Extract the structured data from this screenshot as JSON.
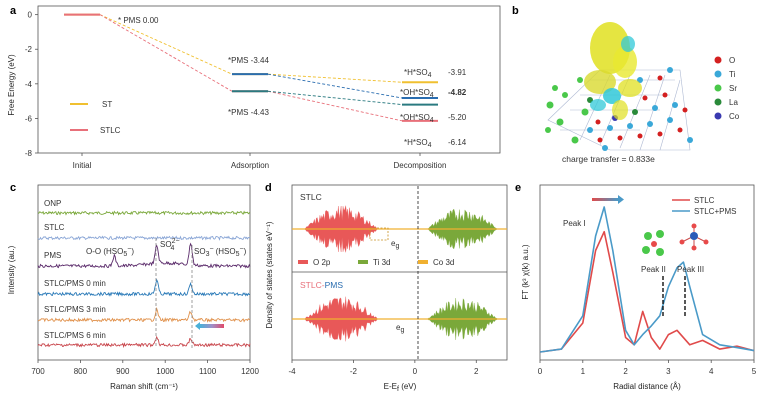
{
  "colors": {
    "st": "#f0c030",
    "stlc": "#e8707a",
    "blue": "#2a6db0",
    "teal": "#2a7a80",
    "onp": "#7aa83a",
    "stlc_c": "#8aa6d6",
    "pms": "#5a2a6a",
    "stlc0": "#2a7ab8",
    "stlc3": "#e0904a",
    "stlc6": "#c8444a",
    "o2p": "#e85858",
    "ti3d": "#7aa83a",
    "co3d": "#f0b030",
    "exafs_stlc": "#e04a4a",
    "exafs_pms": "#4a9ac8"
  },
  "panel_a": {
    "label": "a",
    "ylabel": "Free Energy (eV)",
    "yticks": [
      "0",
      "-2",
      "-4",
      "-6",
      "-8"
    ],
    "xticks": [
      "Initial",
      "Adsorption",
      "Decomposition"
    ],
    "legend": [
      {
        "name": "ST",
        "key": "st"
      },
      {
        "name": "STLC",
        "key": "stlc"
      }
    ],
    "chart_data": {
      "type": "line",
      "title": "",
      "xlabel": "",
      "ylabel": "Free Energy (eV)",
      "ylim": [
        -8,
        0.5
      ],
      "series": [
        {
          "name": "ST",
          "x": [
            "Initial",
            "Adsorption",
            "Decomposition"
          ],
          "values": [
            0.0,
            -3.44,
            -3.91
          ]
        },
        {
          "name": "STLC",
          "x": [
            "Initial",
            "Adsorption",
            "Decomposition"
          ],
          "values": [
            0.0,
            -4.43,
            -6.14
          ]
        },
        {
          "name": "ST (OH*SO4)",
          "x": [
            "Adsorption",
            "Decomposition"
          ],
          "values": [
            -3.44,
            -4.82
          ]
        },
        {
          "name": "STLC (OH*SO4)",
          "x": [
            "Adsorption",
            "Decomposition"
          ],
          "values": [
            -4.43,
            -5.2
          ]
        }
      ]
    },
    "labels": {
      "pms": "* PMS 0.00",
      "ads_st": "*PMS -3.44",
      "ads_stlc": "*PMS -4.43",
      "hso4_st": "*H*SO",
      "hso4_st_val": "-3.91",
      "ohso4_st": "*OH*SO",
      "ohso4_st_val": "-4.82",
      "ohso4_stlc": "*OH*SO",
      "ohso4_stlc_val": "-5.20",
      "hso4_stlc": "*H*SO",
      "hso4_stlc_val": "-6.14",
      "sub4": "4"
    }
  },
  "panel_b": {
    "label": "b",
    "legend": [
      {
        "name": "O",
        "color": "#d42020"
      },
      {
        "name": "Ti",
        "color": "#3aa8d8"
      },
      {
        "name": "Sr",
        "color": "#4ac84a"
      },
      {
        "name": "La",
        "color": "#2a8a3a"
      },
      {
        "name": "Co",
        "color": "#3a3ab0"
      }
    ],
    "caption": "charge transfer = 0.833e"
  },
  "panel_c": {
    "label": "c",
    "ylabel": "Intensity (au.)",
    "xlabel": "Raman shift (cm⁻¹)",
    "xticks": [
      "700",
      "800",
      "900",
      "1000",
      "1100",
      "1200"
    ],
    "chart_data": {
      "type": "line",
      "xlabel": "Raman shift (cm-1)",
      "ylabel": "Intensity (au.)",
      "xlim": [
        700,
        1200
      ],
      "series": [
        {
          "name": "ONP"
        },
        {
          "name": "STLC"
        },
        {
          "name": "PMS",
          "peaks": [
            880,
            980,
            1060
          ]
        },
        {
          "name": "STLC/PMS 0 min",
          "peaks": [
            980,
            1060
          ]
        },
        {
          "name": "STLC/PMS 3 min",
          "peaks": [
            980,
            1060
          ]
        },
        {
          "name": "STLC/PMS 6 min",
          "peaks": [
            980,
            1060
          ]
        }
      ]
    },
    "traces": [
      "ONP",
      "STLC",
      "PMS",
      "STLC/PMS  0 min",
      "STLC/PMS  3 min",
      "STLC/PMS  6 min"
    ],
    "ann_ooh": "O-O (HSO",
    "ann_ooh_sup": "−",
    "ann_ooh_sub": "5",
    "ann_so4": "SO",
    "ann_so4_sup": "2−",
    "ann_so4_sub": "4",
    "ann_so3": "SO",
    "ann_so3_sup": "−",
    "ann_so3_sub": "3",
    "ann_so3_tail": "(HSO",
    "ann_so3_tail_sup": "−",
    "ann_so3_tail_sub": "5",
    "paren": ")"
  },
  "panel_d": {
    "label": "d",
    "ylabel": "Density of states (states eV⁻¹)",
    "xlabel": "E-E",
    "xlabel_sub": "f",
    "xlabel_tail": " (eV)",
    "xticks": [
      "-4",
      "-2",
      "0",
      "2"
    ],
    "top_title": "STLC",
    "bottom_title_a": "STLC-",
    "bottom_title_b": "PMS",
    "eg": "e",
    "eg_sub": "g",
    "legend": [
      {
        "name": "O 2p",
        "key": "o2p"
      },
      {
        "name": "Ti 3d",
        "key": "ti3d"
      },
      {
        "name": "Co 3d",
        "key": "co3d"
      }
    ],
    "chart_data": {
      "type": "area",
      "xlim": [
        -4,
        3
      ],
      "xlabel": "E-Ef (eV)",
      "ylabel": "Density of states",
      "series": [
        {
          "name": "O 2p"
        },
        {
          "name": "Ti 3d"
        },
        {
          "name": "Co 3d"
        }
      ]
    }
  },
  "panel_e": {
    "label": "e",
    "ylabel": "FT (k³ χ(k) a.u.)",
    "xlabel": "Radial distance (Å)",
    "xticks": [
      "0",
      "1",
      "2",
      "3",
      "4",
      "5"
    ],
    "legend": [
      {
        "name": "STLC",
        "key": "exafs_stlc"
      },
      {
        "name": "STLC+PMS",
        "key": "exafs_pms"
      }
    ],
    "peaks": [
      "Peak I",
      "Peak II",
      "Peak III"
    ],
    "chart_data": {
      "type": "line",
      "xlabel": "Radial distance (Å)",
      "ylabel": "FT (k3 x(k) a.u.)",
      "xlim": [
        0,
        5
      ],
      "series": [
        {
          "name": "STLC",
          "x": [
            0,
            0.5,
            1.0,
            1.3,
            1.5,
            1.7,
            2.0,
            2.2,
            2.4,
            2.6,
            2.8,
            3.0,
            3.2,
            3.5,
            3.8,
            4.2,
            4.6,
            5.0
          ],
          "values": [
            0.0,
            0.02,
            0.2,
            0.7,
            0.83,
            0.55,
            0.1,
            0.05,
            0.28,
            0.1,
            0.02,
            0.12,
            0.15,
            0.05,
            0.08,
            0.02,
            0.04,
            0.01
          ]
        },
        {
          "name": "STLC+PMS",
          "x": [
            0,
            0.5,
            1.0,
            1.3,
            1.5,
            1.7,
            2.0,
            2.2,
            2.4,
            2.6,
            2.8,
            3.0,
            3.2,
            3.35,
            3.5,
            3.8,
            4.2,
            4.6,
            5.0
          ],
          "values": [
            0.0,
            0.02,
            0.25,
            0.8,
            1.0,
            0.7,
            0.15,
            0.05,
            0.12,
            0.18,
            0.25,
            0.45,
            0.58,
            0.62,
            0.45,
            0.12,
            0.05,
            0.03,
            0.01
          ]
        }
      ]
    }
  }
}
